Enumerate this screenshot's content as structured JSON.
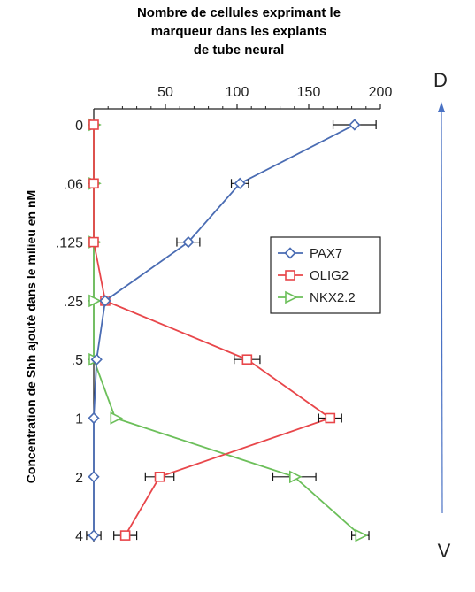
{
  "chart_data": {
    "type": "line",
    "orientation": "horizontal-values",
    "title_lines": [
      "Nombre de cellules exprimant le",
      "marqueur dans les explants",
      "de tube neural"
    ],
    "ylabel": "Concentration de Shh ajouté dans le milieu en nM",
    "xlabel": "",
    "xlim": [
      0,
      200
    ],
    "x_ticks": [
      50,
      100,
      150,
      200
    ],
    "categories": [
      "0",
      ".06",
      ".125",
      ".25",
      ".5",
      "1",
      "2",
      "4"
    ],
    "series": [
      {
        "name": "PAX7",
        "color": "#4a6cb3",
        "marker": "diamond",
        "values": [
          182,
          102,
          66,
          8,
          2,
          0,
          0,
          0
        ],
        "errors": [
          15,
          6,
          8,
          0,
          0,
          0,
          0,
          5
        ]
      },
      {
        "name": "OLIG2",
        "color": "#e8464a",
        "marker": "square",
        "values": [
          0,
          0,
          0,
          8,
          107,
          165,
          46,
          22
        ],
        "errors": [
          0,
          0,
          0,
          0,
          9,
          8,
          10,
          8
        ]
      },
      {
        "name": "NKX2.2",
        "color": "#6cbf5a",
        "marker": "triangle",
        "values": [
          0,
          0,
          0,
          0,
          0,
          15,
          140,
          186
        ],
        "errors": [
          0,
          0,
          0,
          0,
          0,
          0,
          15,
          6
        ]
      }
    ],
    "legend_position": "center-right",
    "grid": false
  },
  "annotations": {
    "top_label": "D",
    "bottom_label": "V",
    "arrow_color": "#4a72c4"
  }
}
